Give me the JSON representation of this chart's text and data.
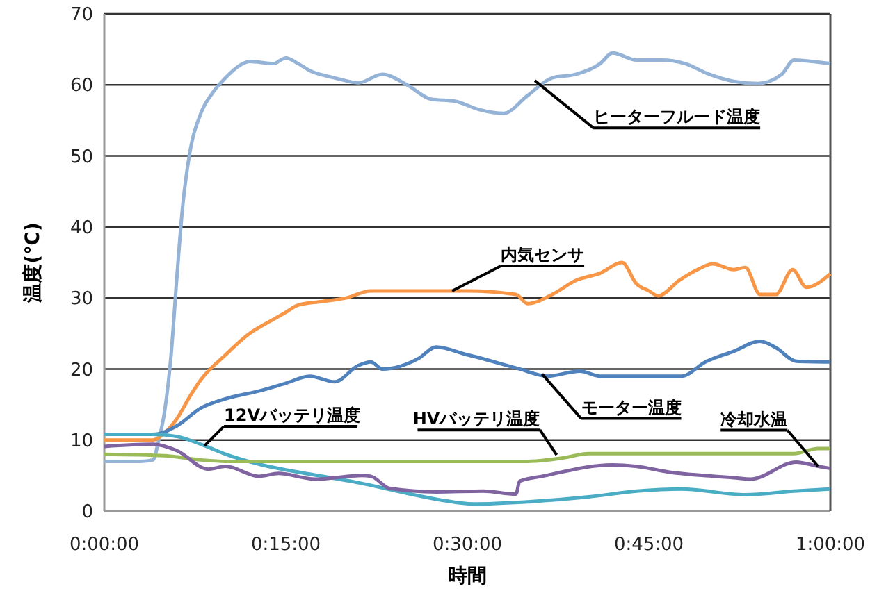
{
  "chart_data": {
    "type": "line",
    "xlabel": "時間",
    "ylabel": "温度(℃)",
    "xlim": [
      0,
      1
    ],
    "xticks": [
      {
        "value": 0,
        "label": "0:00:00"
      },
      {
        "value": 0.25,
        "label": "0:15:00"
      },
      {
        "value": 0.5,
        "label": "0:30:00"
      },
      {
        "value": 0.75,
        "label": "0:45:00"
      },
      {
        "value": 1,
        "label": "1:00:00"
      }
    ],
    "ylim": [
      0,
      70
    ],
    "yticks": [
      0,
      10,
      20,
      30,
      40,
      50,
      60,
      70
    ],
    "grid": "y",
    "marker": "none",
    "line_style": "solid",
    "series": [
      {
        "color": "#95b3d7",
        "x": [
          0,
          0.05,
          0.067,
          0.075,
          0.083,
          0.092,
          0.1,
          0.108,
          0.117,
          0.133,
          0.15,
          0.167,
          0.183,
          0.2,
          0.233,
          0.25,
          0.267,
          0.283,
          0.317,
          0.35,
          0.383,
          0.417,
          0.45,
          0.483,
          0.517,
          0.55,
          0.583,
          0.617,
          0.65,
          0.683,
          0.7,
          0.733,
          0.767,
          0.8,
          0.833,
          0.867,
          0.9,
          0.933,
          0.95,
          0.983,
          1
        ],
        "values": [
          7,
          7,
          7.2,
          10,
          14,
          22,
          33,
          43,
          50,
          56,
          59,
          61,
          62.5,
          63.3,
          63,
          63.8,
          63,
          62,
          61,
          60.3,
          61.5,
          60,
          58,
          57.7,
          56.5,
          56,
          58.5,
          61,
          61.5,
          63,
          64.5,
          63.5,
          63.5,
          63,
          61.5,
          60.5,
          60.2,
          61.5,
          63.5,
          63.2,
          63
        ]
      },
      {
        "color": "#f79646",
        "x": [
          0,
          0.067,
          0.083,
          0.1,
          0.117,
          0.133,
          0.167,
          0.2,
          0.233,
          0.25,
          0.267,
          0.3,
          0.333,
          0.367,
          0.433,
          0.5,
          0.567,
          0.583,
          0.617,
          0.65,
          0.683,
          0.713,
          0.733,
          0.75,
          0.763,
          0.792,
          0.817,
          0.838,
          0.867,
          0.883,
          0.903,
          0.925,
          0.948,
          0.967,
          1
        ],
        "values": [
          10,
          10,
          11,
          13,
          16,
          18.5,
          22,
          25,
          27,
          28,
          29,
          29.5,
          30,
          31,
          31,
          31,
          30.5,
          29.2,
          30.5,
          32.5,
          33.5,
          35,
          32,
          31,
          30.3,
          32.5,
          34,
          34.8,
          34,
          34.3,
          30.5,
          30.5,
          34,
          31.5,
          33.4
        ]
      },
      {
        "color": "#4f81bd",
        "x": [
          0,
          0.067,
          0.1,
          0.133,
          0.167,
          0.217,
          0.25,
          0.283,
          0.317,
          0.35,
          0.367,
          0.383,
          0.433,
          0.457,
          0.5,
          0.508,
          0.572,
          0.61,
          0.655,
          0.683,
          0.795,
          0.828,
          0.867,
          0.903,
          0.925,
          0.953,
          1
        ],
        "values": [
          10.8,
          10.8,
          12,
          14.5,
          15.8,
          17,
          18,
          19,
          18.2,
          20.5,
          21,
          20,
          21.5,
          23.1,
          22,
          21.8,
          20,
          19,
          19.7,
          19,
          19,
          21,
          22.5,
          23.9,
          23,
          21.1,
          21
        ]
      },
      {
        "color": "#4bacc6",
        "x": [
          0,
          0.067,
          0.1,
          0.138,
          0.167,
          0.217,
          0.283,
          0.35,
          0.417,
          0.467,
          0.508,
          0.583,
          0.667,
          0.733,
          0.795,
          0.883,
          0.95,
          1
        ],
        "values": [
          10.8,
          10.8,
          10.5,
          9.2,
          8,
          6.5,
          5.2,
          4,
          2.5,
          1.5,
          1,
          1.3,
          2,
          2.8,
          3.1,
          2.3,
          2.8,
          3.1
        ]
      },
      {
        "color": "#9bbb59",
        "x": [
          0,
          0.083,
          0.133,
          0.167,
          0.583,
          0.633,
          0.667,
          0.95,
          0.983,
          1
        ],
        "values": [
          8,
          7.8,
          7.2,
          7,
          7,
          7.5,
          8.1,
          8.1,
          8.8,
          8.8
        ]
      },
      {
        "color": "#8064a2",
        "x": [
          0,
          0.067,
          0.1,
          0.143,
          0.167,
          0.213,
          0.24,
          0.29,
          0.355,
          0.367,
          0.393,
          0.457,
          0.522,
          0.567,
          0.572,
          0.603,
          0.7,
          0.732,
          0.777,
          0.867,
          0.89,
          0.953,
          0.983,
          1
        ],
        "values": [
          9.1,
          9.4,
          8.5,
          5.9,
          6.3,
          4.9,
          5.3,
          4.5,
          5,
          4.9,
          3.2,
          2.7,
          2.8,
          2.4,
          4.2,
          4.9,
          6.5,
          6.3,
          5.5,
          4.7,
          4.5,
          6.9,
          6.3,
          6
        ]
      }
    ],
    "annotations": [
      {
        "text": "ヒーターフルード温度",
        "x": 0.593,
        "y": 60.6
      },
      {
        "text": "内気センサ",
        "x": 0.479,
        "y": 31
      },
      {
        "text": "モーター温度",
        "x": 0.603,
        "y": 19.3
      },
      {
        "text": "12Vバッテリ温度",
        "x": 0.138,
        "y": 9.2
      },
      {
        "text": "HVバッテリ温度",
        "x": 0.623,
        "y": 7.9
      },
      {
        "text": "冷却水温",
        "x": 0.983,
        "y": 6.3
      }
    ]
  }
}
